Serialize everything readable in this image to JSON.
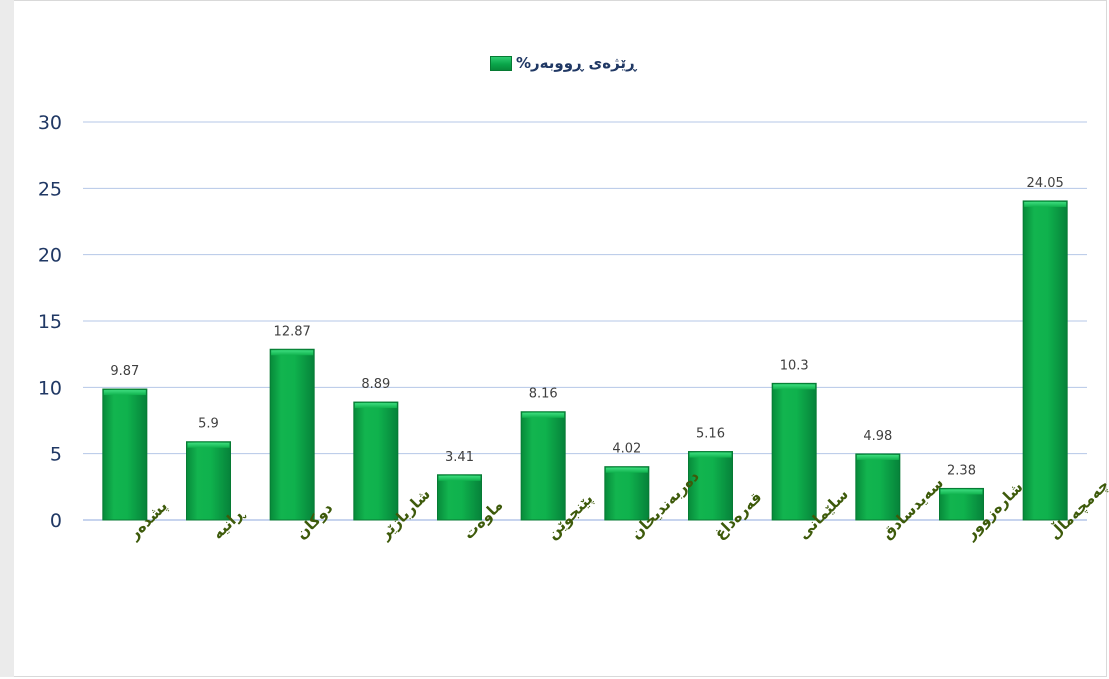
{
  "chart_data": {
    "type": "bar",
    "legend": {
      "label": "ڕێژەی ڕووبەر%",
      "position": "top-center"
    },
    "categories": [
      "پشدەر",
      "ڕانیە",
      "دوکان",
      "شارباژێر",
      "ماوەت",
      "پێنجوێن",
      "دەربەندیخان",
      "قەرەداغ",
      "سلێمانی",
      "سەیدسادق",
      "شارەزوور",
      "چەمچەماڵ"
    ],
    "series": [
      {
        "name": "ڕێژەی ڕووبەر%",
        "values": [
          9.87,
          5.9,
          12.87,
          8.89,
          3.41,
          8.16,
          4.02,
          5.16,
          10.3,
          4.98,
          2.38,
          24.05
        ]
      }
    ],
    "data_labels": [
      "9.87",
      "5.9",
      "12.87",
      "8.89",
      "3.41",
      "8.16",
      "4.02",
      "5.16",
      "10.3",
      "4.98",
      "2.38",
      "24.05"
    ],
    "yticks": [
      "0",
      "5",
      "10",
      "15",
      "20",
      "25",
      "30"
    ],
    "ylim": [
      0,
      30
    ],
    "grid": true,
    "colors": {
      "bar": "#0db14b",
      "bar_edge": "#067a33",
      "grid": "#b4c7e7",
      "tick_text": "#203864",
      "category_text": "#3d5a0a",
      "data_label": "#404040"
    }
  }
}
